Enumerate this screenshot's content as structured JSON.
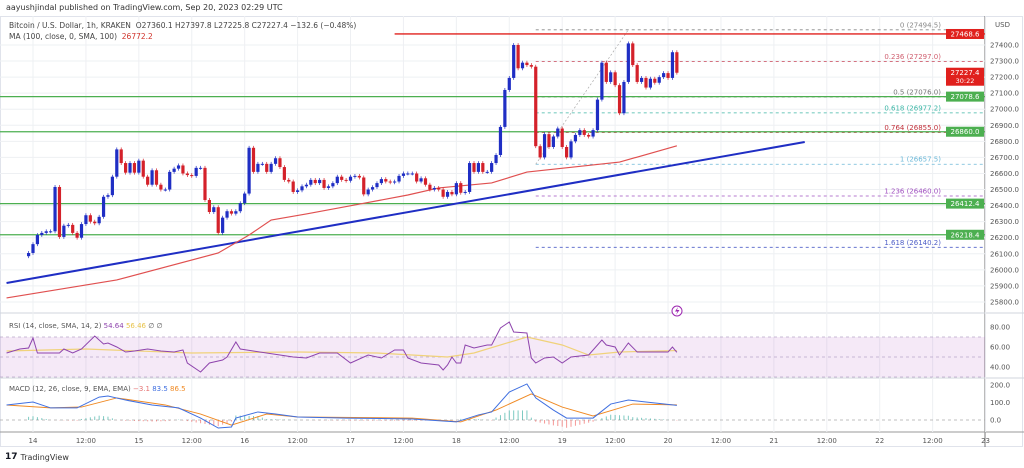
{
  "header": {
    "publisher_line": "aayushjindal published on TradingView.com, Sep 20, 2023 02:29 UTC",
    "symbol": "Bitcoin / U.S. Dollar, 1h, KRAKEN",
    "ohlc": "O27360.1  H27397.8  L27225.8  C27227.4  −132.6 (−0.48%)",
    "ma_label": "MA (100, close, 0, SMA, 100)",
    "ma_value": "26772.2"
  },
  "footer": {
    "logo_mark": "17",
    "brand": "TradingView"
  },
  "colors": {
    "up": "#1f2ec4",
    "down": "#d4212a",
    "ma": "#e05050",
    "trendline": "#1f2ec4",
    "resistance": "#e0201d",
    "support": "#4caf50",
    "rsi": "#8e44ad",
    "rsi_ma": "#f0d27a",
    "macd": "#3f6fe0",
    "signal": "#f08a24"
  },
  "chart_data": {
    "type": "candlestick",
    "currency": "USD",
    "interval": "1h",
    "last_candle": "20 02:00",
    "closes": [
      26105,
      26160,
      26217,
      26230,
      26240,
      26240,
      26516,
      26205,
      26275,
      26280,
      26230,
      26200,
      26285,
      26340,
      26300,
      26290,
      26330,
      26455,
      26465,
      26580,
      26750,
      26665,
      26605,
      26665,
      26605,
      26680,
      26580,
      26530,
      26620,
      26530,
      26500,
      26500,
      26610,
      26630,
      26650,
      26600,
      26590,
      26585,
      26635,
      26635,
      26435,
      26360,
      26390,
      26230,
      26325,
      26365,
      26350,
      26365,
      26415,
      26475,
      26760,
      26610,
      26660,
      26660,
      26610,
      26660,
      26695,
      26640,
      26560,
      26550,
      26485,
      26495,
      26520,
      26530,
      26560,
      26540,
      26560,
      26510,
      26520,
      26540,
      26580,
      26560,
      26555,
      26580,
      26585,
      26575,
      26470,
      26500,
      26515,
      26540,
      26565,
      26550,
      26545,
      26550,
      26585,
      26600,
      26600,
      26600,
      26550,
      26570,
      26530,
      26500,
      26510,
      26500,
      26455,
      26485,
      26470,
      26540,
      26480,
      26485,
      26665,
      26610,
      26665,
      26610,
      26610,
      26665,
      26715,
      26890,
      27120,
      27195,
      27400,
      27255,
      27290,
      27275,
      27265,
      26770,
      26700,
      26845,
      26765,
      26830,
      26880,
      26765,
      26700,
      26800,
      26840,
      26870,
      26840,
      26830,
      26870,
      27060,
      27290,
      27170,
      27230,
      27150,
      26975,
      27170,
      27410,
      27275,
      27170,
      27195,
      27135,
      27190,
      27165,
      27200,
      27225,
      27195,
      27355,
      27227.4
    ],
    "ma100": [
      [
        "13 18:00",
        25825
      ],
      [
        "14 19:00",
        25937
      ],
      [
        "15 18:00",
        26105
      ],
      [
        "16 01:00",
        26217
      ],
      [
        "16 06:00",
        26310
      ],
      [
        "16 14:00",
        26348
      ],
      [
        "17 01:00",
        26404
      ],
      [
        "17 13:00",
        26466
      ],
      [
        "17 20:00",
        26510
      ],
      [
        "18 08:00",
        26541
      ],
      [
        "18 16:00",
        26609
      ],
      [
        "19 13:00",
        26671
      ],
      [
        "20 02:00",
        26772.2
      ]
    ],
    "trendline": [
      [
        "13 18:00",
        25918
      ],
      [
        "21 07:00",
        26796
      ]
    ],
    "resistance": {
      "from": "17 10:00",
      "price": 27468.6
    },
    "support_levels": [
      27078.6,
      26860.0,
      26412.4,
      26218.4
    ],
    "fib_anchor": [
      [
        "18 18:00",
        26657.5
      ],
      [
        "19 15:00",
        27494.5
      ]
    ],
    "fib_from": "18 18:00",
    "fib_levels": [
      {
        "label": "0 (27494.5)",
        "price": 27494.5,
        "color": "#888888"
      },
      {
        "label": "0.236 (27297.0)",
        "price": 27297.0,
        "color": "#d06070"
      },
      {
        "label": "0.5 (27076.0)",
        "price": 27076.0,
        "color": "#777777"
      },
      {
        "label": "0.618 (26977.2)",
        "price": 26977.2,
        "color": "#3cb6a6"
      },
      {
        "label": "0.764 (26855.0)",
        "price": 26855.0,
        "color": "#c0303a"
      },
      {
        "label": "1 (26657.5)",
        "price": 26657.5,
        "color": "#6cb8d8"
      },
      {
        "label": "1.236 (26460.0)",
        "price": 26460.0,
        "color": "#a050c0"
      },
      {
        "label": "1.618 (26140.2)",
        "price": 26140.2,
        "color": "#5060c8"
      }
    ],
    "price_ticks": [
      "27400.0",
      "27300.0",
      "27200.0",
      "27100.0",
      "27000.0",
      "26900.0",
      "26800.0",
      "26700.0",
      "26600.0",
      "26500.0",
      "26400.0",
      "26300.0",
      "26200.0",
      "26100.0",
      "26000.0",
      "25900.0",
      "25800.0"
    ],
    "price_tags": [
      {
        "text": "27468.6",
        "price": 27468.6,
        "color": "#e0201d"
      },
      {
        "text": "27227.4",
        "sub": "30:22",
        "price": 27227.4,
        "color": "#e0201d"
      },
      {
        "text": "27078.6",
        "price": 27078.6,
        "color": "#4caf50"
      },
      {
        "text": "26860.0",
        "price": 26860.0,
        "color": "#4caf50"
      },
      {
        "text": "26412.4",
        "price": 26412.4,
        "color": "#4caf50"
      },
      {
        "text": "26218.4",
        "price": 26218.4,
        "color": "#4caf50"
      }
    ],
    "x_ticks": [
      "14",
      "12:00",
      "15",
      "12:00",
      "16",
      "12:00",
      "17",
      "12:00",
      "18",
      "12:00",
      "19",
      "12:00",
      "20",
      "12:00",
      "21",
      "12:00",
      "22",
      "12:00",
      "23"
    ],
    "rsi": {
      "legend": "RSI (14, close, SMA, 14, 2)",
      "value": "54.64",
      "ma_value": "56.46",
      "extra": "∅  ∅",
      "ticks": [
        "80.00",
        "60.00",
        "40.00"
      ],
      "band": [
        30,
        70
      ],
      "line": [
        [
          "13 18:00",
          54
        ],
        [
          "13 21:00",
          58
        ],
        [
          "13 23:00",
          59
        ],
        [
          "14 00:00",
          69
        ],
        [
          "14 01:00",
          54
        ],
        [
          "14 04:00",
          54
        ],
        [
          "14 06:00",
          54
        ],
        [
          "14 07:00",
          58
        ],
        [
          "14 09:00",
          54
        ],
        [
          "14 11:00",
          58
        ],
        [
          "14 14:00",
          71
        ],
        [
          "14 16:00",
          63
        ],
        [
          "14 17:00",
          64
        ],
        [
          "14 19:00",
          60
        ],
        [
          "14 21:00",
          55
        ],
        [
          "14 23:00",
          56
        ],
        [
          "15 02:00",
          58
        ],
        [
          "15 05:00",
          56
        ],
        [
          "15 08:00",
          55
        ],
        [
          "15 10:00",
          57
        ],
        [
          "15 11:00",
          44
        ],
        [
          "15 14:00",
          35
        ],
        [
          "15 16:00",
          44
        ],
        [
          "15 19:00",
          47
        ],
        [
          "15 20:00",
          50
        ],
        [
          "15 22:00",
          65
        ],
        [
          "15 23:00",
          58
        ],
        [
          "16 08:00",
          52
        ],
        [
          "16 11:00",
          50
        ],
        [
          "16 14:00",
          49
        ],
        [
          "16 17:00",
          54
        ],
        [
          "16 21:00",
          54
        ],
        [
          "17 00:00",
          44
        ],
        [
          "17 04:00",
          52
        ],
        [
          "17 07:00",
          49
        ],
        [
          "17 10:00",
          57
        ],
        [
          "17 12:00",
          57
        ],
        [
          "17 13:00",
          49
        ],
        [
          "17 16:00",
          44
        ],
        [
          "17 20:00",
          42
        ],
        [
          "17 21:00",
          37
        ],
        [
          "17 22:00",
          42
        ],
        [
          "17 23:00",
          50
        ],
        [
          "18 00:00",
          44
        ],
        [
          "18 01:00",
          44
        ],
        [
          "18 02:00",
          62
        ],
        [
          "18 04:00",
          59
        ],
        [
          "18 07:00",
          62
        ],
        [
          "18 08:00",
          62
        ],
        [
          "18 10:00",
          79
        ],
        [
          "18 12:00",
          85
        ],
        [
          "18 13:00",
          75
        ],
        [
          "18 16:00",
          74
        ],
        [
          "18 17:00",
          49
        ],
        [
          "18 18:00",
          44
        ],
        [
          "18 20:00",
          49
        ],
        [
          "18 22:00",
          50
        ],
        [
          "19 00:00",
          44
        ],
        [
          "19 02:00",
          50
        ],
        [
          "19 06:00",
          52
        ],
        [
          "19 09:00",
          67
        ],
        [
          "19 10:00",
          62
        ],
        [
          "19 12:00",
          60
        ],
        [
          "19 13:00",
          52
        ],
        [
          "19 15:00",
          64
        ],
        [
          "19 17:00",
          55
        ],
        [
          "19 19:00",
          55
        ],
        [
          "20 00:00",
          55
        ],
        [
          "20 01:00",
          60
        ],
        [
          "20 02:00",
          54.64
        ]
      ],
      "ma": [
        [
          "13 18:00",
          56
        ],
        [
          "14 12:00",
          58
        ],
        [
          "15 12:00",
          54
        ],
        [
          "16 12:00",
          55
        ],
        [
          "17 06:00",
          54
        ],
        [
          "17 22:00",
          50
        ],
        [
          "18 04:00",
          54
        ],
        [
          "18 16:00",
          70
        ],
        [
          "19 00:00",
          62
        ],
        [
          "19 06:00",
          52
        ],
        [
          "19 13:00",
          55
        ],
        [
          "20 02:00",
          56.46
        ]
      ]
    },
    "macd": {
      "legend": "MACD (12, 26, close, 9, EMA, EMA)",
      "hist_value": "−3.1",
      "macd_value": "83.5",
      "signal_value": "86.5",
      "ticks": [
        "200.0",
        "100.0",
        "0.0"
      ],
      "macd_line": [
        [
          "13 18:00",
          86
        ],
        [
          "14 00:00",
          103
        ],
        [
          "14 04:00",
          69
        ],
        [
          "14 10:00",
          69
        ],
        [
          "14 15:00",
          131
        ],
        [
          "14 17:00",
          137
        ],
        [
          "14 21:00",
          114
        ],
        [
          "15 03:00",
          86
        ],
        [
          "15 09:00",
          69
        ],
        [
          "15 14:00",
          11
        ],
        [
          "15 18:00",
          -46
        ],
        [
          "15 21:00",
          -40
        ],
        [
          "15 22:00",
          11
        ],
        [
          "16 03:00",
          46
        ],
        [
          "16 07:00",
          34
        ],
        [
          "16 12:00",
          17
        ],
        [
          "16 23:00",
          11
        ],
        [
          "17 14:00",
          6
        ],
        [
          "18 00:00",
          -11
        ],
        [
          "18 05:00",
          29
        ],
        [
          "18 08:00",
          46
        ],
        [
          "18 12:00",
          160
        ],
        [
          "18 16:00",
          206
        ],
        [
          "18 18:00",
          126
        ],
        [
          "18 22:00",
          57
        ],
        [
          "19 01:00",
          11
        ],
        [
          "19 07:00",
          11
        ],
        [
          "19 11:00",
          91
        ],
        [
          "19 15:00",
          114
        ],
        [
          "19 19:00",
          103
        ],
        [
          "20 02:00",
          83.5
        ]
      ],
      "signal_line": [
        [
          "13 18:00",
          86
        ],
        [
          "14 04:00",
          69
        ],
        [
          "14 11:00",
          74
        ],
        [
          "14 19:00",
          126
        ],
        [
          "15 06:00",
          86
        ],
        [
          "15 14:00",
          34
        ],
        [
          "15 21:00",
          -29
        ],
        [
          "16 05:00",
          34
        ],
        [
          "16 12:00",
          17
        ],
        [
          "17 14:00",
          11
        ],
        [
          "18 01:00",
          -11
        ],
        [
          "18 09:00",
          57
        ],
        [
          "18 17:00",
          149
        ],
        [
          "19 00:00",
          74
        ],
        [
          "19 07:00",
          23
        ],
        [
          "19 16:00",
          91
        ],
        [
          "20 02:00",
          86.5
        ]
      ]
    }
  }
}
